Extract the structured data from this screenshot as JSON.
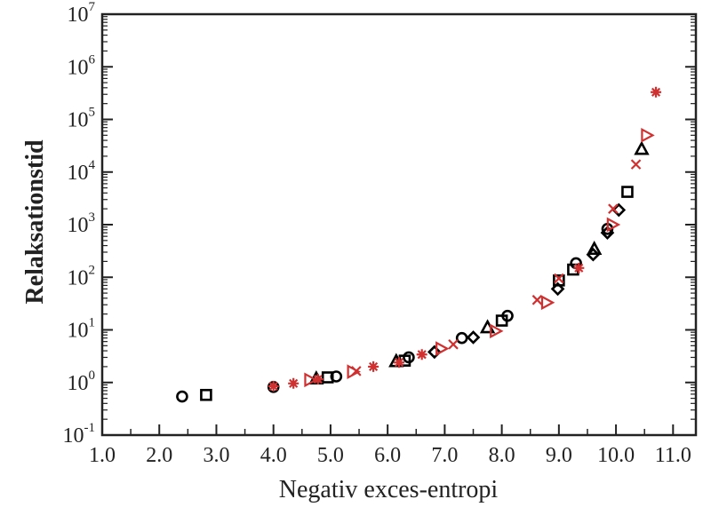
{
  "chart_data": {
    "type": "scatter",
    "title": "",
    "xlabel": "Negativ exces-entropi",
    "ylabel": "Relaksationstid",
    "xlim": [
      1.0,
      11.4
    ],
    "ylim_log10": [
      -1,
      7
    ],
    "yscale": "log",
    "x_ticks": [
      "1.0",
      "2.0",
      "3.0",
      "4.0",
      "5.0",
      "6.0",
      "7.0",
      "8.0",
      "9.0",
      "10.0",
      "11.0"
    ],
    "y_ticks": [
      {
        "base": "10",
        "exp": "-1"
      },
      {
        "base": "10",
        "exp": "0"
      },
      {
        "base": "10",
        "exp": "1"
      },
      {
        "base": "10",
        "exp": "2"
      },
      {
        "base": "10",
        "exp": "3"
      },
      {
        "base": "10",
        "exp": "4"
      },
      {
        "base": "10",
        "exp": "5"
      },
      {
        "base": "10",
        "exp": "6"
      },
      {
        "base": "10",
        "exp": "7"
      }
    ],
    "grid": false,
    "colors": {
      "black": "#000000",
      "red": "#d03030"
    },
    "points": [
      {
        "x": 2.4,
        "y": 0.54,
        "marker": "circle",
        "color": "black"
      },
      {
        "x": 2.82,
        "y": 0.58,
        "marker": "square",
        "color": "black"
      },
      {
        "x": 4.0,
        "y": 0.82,
        "marker": "circle",
        "color": "black"
      },
      {
        "x": 4.75,
        "y": 1.17,
        "marker": "triangle",
        "color": "black"
      },
      {
        "x": 4.95,
        "y": 1.25,
        "marker": "square",
        "color": "black"
      },
      {
        "x": 5.1,
        "y": 1.3,
        "marker": "circle",
        "color": "black"
      },
      {
        "x": 6.15,
        "y": 2.5,
        "marker": "triangle",
        "color": "black"
      },
      {
        "x": 6.3,
        "y": 2.6,
        "marker": "square",
        "color": "black"
      },
      {
        "x": 6.37,
        "y": 3.0,
        "marker": "circle",
        "color": "black"
      },
      {
        "x": 6.82,
        "y": 3.8,
        "marker": "diamond",
        "color": "black"
      },
      {
        "x": 7.3,
        "y": 7.0,
        "marker": "circle",
        "color": "black"
      },
      {
        "x": 7.5,
        "y": 7.2,
        "marker": "diamond",
        "color": "black"
      },
      {
        "x": 7.75,
        "y": 11,
        "marker": "triangle",
        "color": "black"
      },
      {
        "x": 8.0,
        "y": 15,
        "marker": "square",
        "color": "black"
      },
      {
        "x": 8.1,
        "y": 18.5,
        "marker": "circle",
        "color": "black"
      },
      {
        "x": 8.98,
        "y": 60,
        "marker": "diamond",
        "color": "black"
      },
      {
        "x": 9.0,
        "y": 87,
        "marker": "square",
        "color": "black"
      },
      {
        "x": 9.25,
        "y": 140,
        "marker": "square",
        "color": "black"
      },
      {
        "x": 9.3,
        "y": 185,
        "marker": "circle",
        "color": "black"
      },
      {
        "x": 9.6,
        "y": 270,
        "marker": "diamond",
        "color": "black"
      },
      {
        "x": 9.62,
        "y": 340,
        "marker": "triangle",
        "color": "black"
      },
      {
        "x": 9.85,
        "y": 700,
        "marker": "diamond",
        "color": "black"
      },
      {
        "x": 9.85,
        "y": 830,
        "marker": "circle",
        "color": "black"
      },
      {
        "x": 10.05,
        "y": 1900,
        "marker": "diamond",
        "color": "black"
      },
      {
        "x": 10.2,
        "y": 4200,
        "marker": "square",
        "color": "black"
      },
      {
        "x": 10.45,
        "y": 27000,
        "marker": "triangle",
        "color": "black"
      },
      {
        "x": 4.0,
        "y": 0.85,
        "marker": "asterisk",
        "color": "red"
      },
      {
        "x": 4.35,
        "y": 0.96,
        "marker": "asterisk",
        "color": "red"
      },
      {
        "x": 4.65,
        "y": 1.12,
        "marker": "triangle-right",
        "color": "red"
      },
      {
        "x": 4.78,
        "y": 1.15,
        "marker": "asterisk",
        "color": "red"
      },
      {
        "x": 5.4,
        "y": 1.6,
        "marker": "triangle-right",
        "color": "red"
      },
      {
        "x": 5.45,
        "y": 1.65,
        "marker": "cross",
        "color": "red"
      },
      {
        "x": 5.75,
        "y": 2.0,
        "marker": "asterisk",
        "color": "red"
      },
      {
        "x": 6.2,
        "y": 2.4,
        "marker": "asterisk",
        "color": "red"
      },
      {
        "x": 6.6,
        "y": 3.4,
        "marker": "asterisk",
        "color": "red"
      },
      {
        "x": 6.95,
        "y": 4.4,
        "marker": "triangle-right",
        "color": "red"
      },
      {
        "x": 7.15,
        "y": 5.3,
        "marker": "cross",
        "color": "red"
      },
      {
        "x": 7.9,
        "y": 9.5,
        "marker": "triangle-right",
        "color": "red"
      },
      {
        "x": 8.62,
        "y": 37,
        "marker": "cross",
        "color": "red"
      },
      {
        "x": 8.8,
        "y": 33,
        "marker": "triangle-right",
        "color": "red"
      },
      {
        "x": 9.0,
        "y": 95,
        "marker": "cross",
        "color": "red"
      },
      {
        "x": 9.35,
        "y": 150,
        "marker": "asterisk",
        "color": "red"
      },
      {
        "x": 9.95,
        "y": 1000,
        "marker": "triangle-right",
        "color": "red"
      },
      {
        "x": 9.95,
        "y": 2000,
        "marker": "cross",
        "color": "red"
      },
      {
        "x": 10.35,
        "y": 14000,
        "marker": "cross",
        "color": "red"
      },
      {
        "x": 10.55,
        "y": 50000,
        "marker": "triangle-right",
        "color": "red"
      },
      {
        "x": 10.7,
        "y": 330000,
        "marker": "asterisk",
        "color": "red"
      }
    ]
  }
}
